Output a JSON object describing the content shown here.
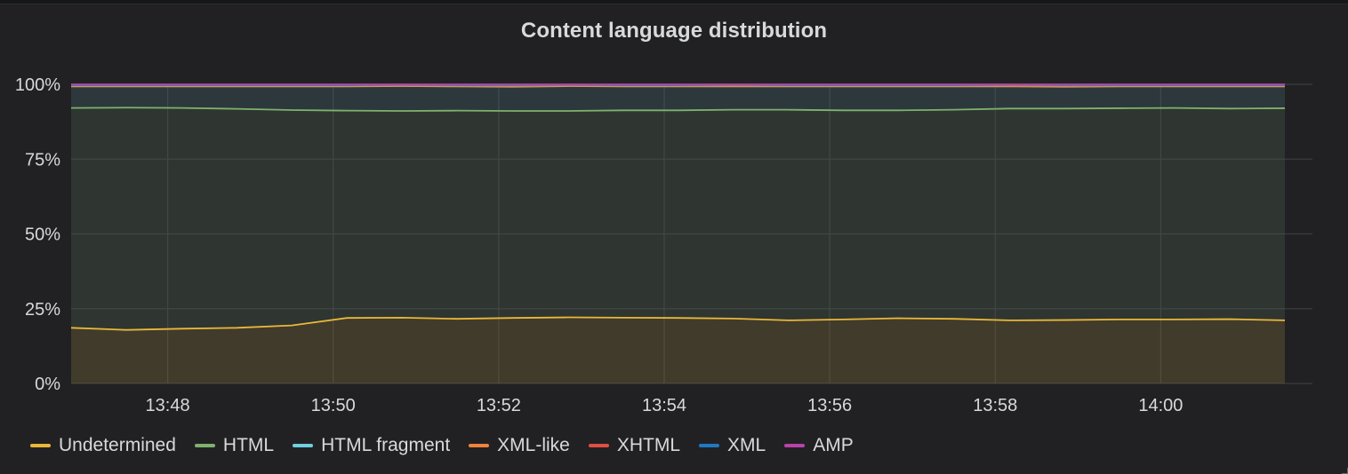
{
  "panel": {
    "title": "Content language distribution"
  },
  "chart_data": {
    "type": "area",
    "title": "Content language distribution",
    "stacked": true,
    "x_range": [
      "13:46:50",
      "14:01:30"
    ],
    "x_ticks": [
      "13:48",
      "13:50",
      "13:52",
      "13:54",
      "13:56",
      "13:58",
      "14:00"
    ],
    "y_ticks": [
      "0%",
      "25%",
      "50%",
      "75%",
      "100%"
    ],
    "ylim": [
      0,
      100
    ],
    "grid": true,
    "legend_position": "bottom-left",
    "x": [
      "13:46:50",
      "13:47:30",
      "13:48:10",
      "13:48:50",
      "13:49:30",
      "13:50:10",
      "13:50:50",
      "13:51:30",
      "13:52:10",
      "13:52:50",
      "13:53:30",
      "13:54:10",
      "13:54:50",
      "13:55:30",
      "13:56:10",
      "13:56:50",
      "13:57:30",
      "13:58:10",
      "13:58:50",
      "13:59:30",
      "14:00:10",
      "14:00:50",
      "14:01:30"
    ],
    "series": [
      {
        "name": "Undetermined",
        "color": "#eab839",
        "values": [
          18.6,
          17.9,
          18.3,
          18.6,
          19.4,
          21.9,
          22.0,
          21.6,
          21.9,
          22.1,
          22.0,
          21.9,
          21.7,
          21.1,
          21.4,
          21.8,
          21.6,
          21.1,
          21.2,
          21.4,
          21.4,
          21.5,
          21.1
        ]
      },
      {
        "name": "HTML",
        "color": "#7eb26d",
        "values": [
          73.5,
          74.3,
          73.8,
          73.2,
          72.0,
          69.3,
          69.1,
          69.6,
          69.2,
          69.0,
          69.3,
          69.4,
          69.8,
          70.4,
          69.9,
          69.5,
          69.9,
          70.8,
          70.7,
          70.6,
          70.7,
          70.4,
          70.9
        ]
      },
      {
        "name": "HTML fragment",
        "color": "#6ed0e0",
        "values": [
          7.2,
          7.1,
          7.2,
          7.5,
          7.9,
          8.1,
          8.3,
          8.1,
          8.1,
          8.3,
          8.0,
          8.0,
          7.8,
          7.8,
          8.0,
          8.0,
          7.8,
          7.4,
          7.3,
          7.3,
          7.2,
          7.4,
          7.3
        ]
      },
      {
        "name": "XML-like",
        "color": "#ef843c",
        "values": [
          0.1,
          0.1,
          0.1,
          0.1,
          0.1,
          0.1,
          0.1,
          0.1,
          0.1,
          0.1,
          0.1,
          0.1,
          0.1,
          0.1,
          0.1,
          0.1,
          0.1,
          0.1,
          0.1,
          0.1,
          0.1,
          0.1,
          0.1
        ]
      },
      {
        "name": "XHTML",
        "color": "#e24d42",
        "values": [
          0.3,
          0.3,
          0.3,
          0.3,
          0.3,
          0.3,
          0.3,
          0.3,
          0.4,
          0.3,
          0.3,
          0.3,
          0.4,
          0.3,
          0.3,
          0.3,
          0.3,
          0.4,
          0.4,
          0.3,
          0.3,
          0.3,
          0.3
        ]
      },
      {
        "name": "XML",
        "color": "#1f78c1",
        "values": [
          0.1,
          0.1,
          0.1,
          0.1,
          0.1,
          0.1,
          0.1,
          0.1,
          0.1,
          0.1,
          0.1,
          0.1,
          0.1,
          0.1,
          0.1,
          0.1,
          0.1,
          0.1,
          0.1,
          0.1,
          0.1,
          0.1,
          0.1
        ]
      },
      {
        "name": "AMP",
        "color": "#ba43a9",
        "values": [
          0.2,
          0.2,
          0.2,
          0.2,
          0.2,
          0.2,
          0.1,
          0.2,
          0.2,
          0.2,
          0.2,
          0.2,
          0.1,
          0.2,
          0.2,
          0.2,
          0.2,
          0.1,
          0.2,
          0.2,
          0.2,
          0.2,
          0.2
        ]
      }
    ]
  }
}
